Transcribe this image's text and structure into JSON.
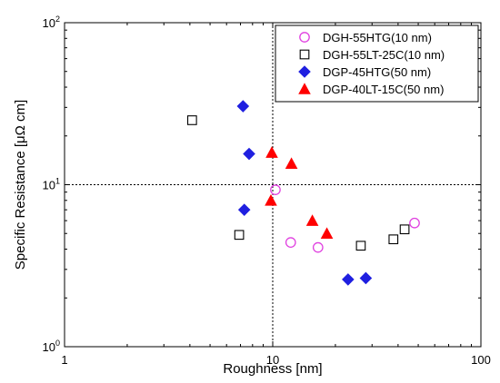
{
  "chart_data": {
    "type": "scatter",
    "xlabel": "Roughness [nm]",
    "ylabel": "Specific Resistance [μΩ cm]",
    "xscale": "log",
    "yscale": "log",
    "xlim": [
      1,
      100
    ],
    "ylim": [
      1,
      100
    ],
    "x_ticks": [
      {
        "value": 1,
        "base": "1",
        "exp": ""
      },
      {
        "value": 10,
        "base": "10",
        "exp": ""
      },
      {
        "value": 100,
        "base": "100",
        "exp": ""
      }
    ],
    "y_ticks": [
      {
        "value": 1,
        "base": "10",
        "exp": "0"
      },
      {
        "value": 10,
        "base": "10",
        "exp": "1"
      },
      {
        "value": 100,
        "base": "10",
        "exp": "2"
      }
    ],
    "reference_lines": {
      "x": 10,
      "y": 10,
      "style": "dotted"
    },
    "legend_position": "top-right",
    "series": [
      {
        "name": "DGH-55HTG(10 nm)",
        "marker": "open-circle",
        "color": "#e040e0",
        "points": [
          [
            10.3,
            9.3
          ],
          [
            12.2,
            4.4
          ],
          [
            16.5,
            4.1
          ],
          [
            48,
            5.8
          ]
        ]
      },
      {
        "name": "DGH-55LT-25C(10 nm)",
        "marker": "open-square",
        "color": "#000000",
        "points": [
          [
            4.1,
            25
          ],
          [
            6.9,
            4.9
          ],
          [
            26.5,
            4.2
          ],
          [
            38,
            4.6
          ],
          [
            43,
            5.3
          ]
        ]
      },
      {
        "name": "DGP-45HTG(50 nm)",
        "marker": "filled-diamond",
        "color": "#1f1fe0",
        "points": [
          [
            7.2,
            30.5
          ],
          [
            7.7,
            15.5
          ],
          [
            7.3,
            7.0
          ],
          [
            23,
            2.6
          ],
          [
            28,
            2.65
          ]
        ]
      },
      {
        "name": "DGP-40LT-15C(50 nm)",
        "marker": "filled-triangle",
        "color": "#ff0000",
        "points": [
          [
            9.9,
            15.8
          ],
          [
            12.3,
            13.5
          ],
          [
            9.8,
            8.0
          ],
          [
            15.5,
            6.0
          ],
          [
            18.2,
            5.0
          ]
        ]
      }
    ]
  }
}
